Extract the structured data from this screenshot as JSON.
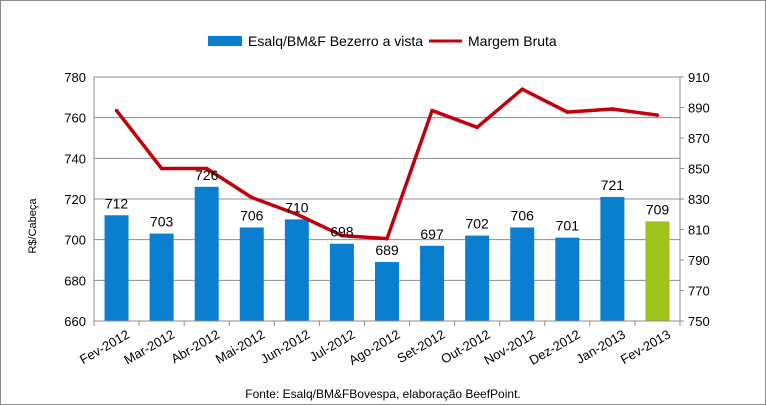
{
  "chart_data": {
    "type": "bar",
    "title": "",
    "source": "Fonte: Esalq/BM&FBovespa, elaboração BeefPoint.",
    "ylabel": "R$/Cabeça",
    "y2label": "",
    "categories": [
      "Fev-2012",
      "Mar-2012",
      "Abr-2012",
      "Mai-2012",
      "Jun-2012",
      "Jul-2012",
      "Ago-2012",
      "Set-2012",
      "Out-2012",
      "Nov-2012",
      "Dez-2012",
      "Jan-2013",
      "Fev-2013"
    ],
    "ylim": [
      660,
      780
    ],
    "yticks": [
      660,
      680,
      700,
      720,
      740,
      760,
      780
    ],
    "y2lim": [
      750,
      910
    ],
    "y2ticks": [
      750,
      770,
      790,
      810,
      830,
      850,
      870,
      890,
      910
    ],
    "grid": true,
    "legend_position": "top-center",
    "series": [
      {
        "name": "Esalq/BM&F Bezerro a vista",
        "type": "bar",
        "axis": "left",
        "color": "#0a7fd0",
        "highlight_last_color": "#9ac31c",
        "values": [
          712,
          703,
          726,
          706,
          710,
          698,
          689,
          697,
          702,
          706,
          701,
          721,
          709
        ],
        "labels": [
          "712",
          "703",
          "726",
          "706",
          "710",
          "698",
          "689",
          "697",
          "702",
          "706",
          "701",
          "721",
          "709"
        ]
      },
      {
        "name": "Margem Bruta",
        "type": "line",
        "axis": "right",
        "color": "#c0000d",
        "values": [
          888,
          850,
          850,
          831,
          820,
          806,
          804,
          888,
          877,
          902,
          887,
          889,
          885
        ]
      }
    ]
  }
}
